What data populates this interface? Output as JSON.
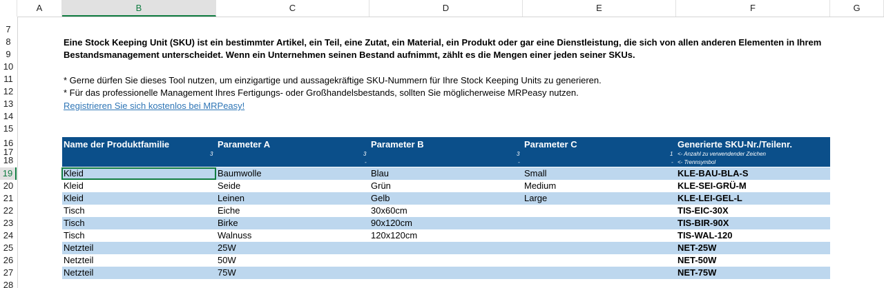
{
  "columns": [
    "A",
    "B",
    "C",
    "D",
    "E",
    "F",
    "G"
  ],
  "rows": [
    "7",
    "8",
    "9",
    "10",
    "11",
    "12",
    "13",
    "14",
    "15",
    "16",
    "17",
    "18",
    "19",
    "20",
    "21",
    "22",
    "23",
    "24",
    "25",
    "26",
    "27",
    "28"
  ],
  "intro": {
    "line1": "Eine Stock Keeping Unit (SKU) ist ein bestimmter Artikel, ein Teil, eine Zutat, ein Material, ein Produkt oder gar eine Dienstleistung, die sich von allen anderen Elementen in Ihrem",
    "line2": "Bestandsmanagement unterscheidet. Wenn ein Unternehmen seinen Bestand aufnimmt, zählt es die Mengen einer jeden seiner SKUs.",
    "bullet1": "* Gerne dürfen Sie dieses Tool nutzen, um einzigartige und aussagekräftige SKU-Nummern für Ihre Stock Keeping Units zu generieren.",
    "bullet2": "* Für das professionelle Management Ihres Fertigungs- oder Großhandelsbestands, sollten Sie möglicherweise MRPeasy nutzen.",
    "link": "Registrieren Sie sich kostenlos bei MRPeasy!"
  },
  "table": {
    "headers": [
      "Name der Produktfamilie",
      "Parameter A",
      "Parameter B",
      "Parameter C",
      "Generierte SKU-Nr./Teilenr."
    ],
    "counts": [
      "3",
      "3",
      "3",
      "1"
    ],
    "separators": [
      "-",
      "-"
    ],
    "note_count": "<- Anzahl zu verwendender Zeichen",
    "note_sep_dash": "-",
    "note_sep": "<- Trennsymbol",
    "rows": [
      [
        "Kleid",
        "Baumwolle",
        "Blau",
        "Small",
        "KLE-BAU-BLA-S"
      ],
      [
        "Kleid",
        "Seide",
        "Grün",
        "Medium",
        "KLE-SEI-GRÜ-M"
      ],
      [
        "Kleid",
        "Leinen",
        "Gelb",
        "Large",
        "KLE-LEI-GEL-L"
      ],
      [
        "Tisch",
        "Eiche",
        "30x60cm",
        "",
        "TIS-EIC-30X"
      ],
      [
        "Tisch",
        "Birke",
        "90x120cm",
        "",
        "TIS-BIR-90X"
      ],
      [
        "Tisch",
        "Walnuss",
        "120x120cm",
        "",
        "TIS-WAL-120"
      ],
      [
        "Netzteil",
        "25W",
        "",
        "",
        "NET-25W"
      ],
      [
        "Netzteil",
        "50W",
        "",
        "",
        "NET-50W"
      ],
      [
        "Netzteil",
        "75W",
        "",
        "",
        "NET-75W"
      ]
    ]
  },
  "colors": {
    "header_band": "#0b4f8a",
    "stripe": "#bdd7ee",
    "selection": "#107c41",
    "link": "#2e75b6"
  }
}
